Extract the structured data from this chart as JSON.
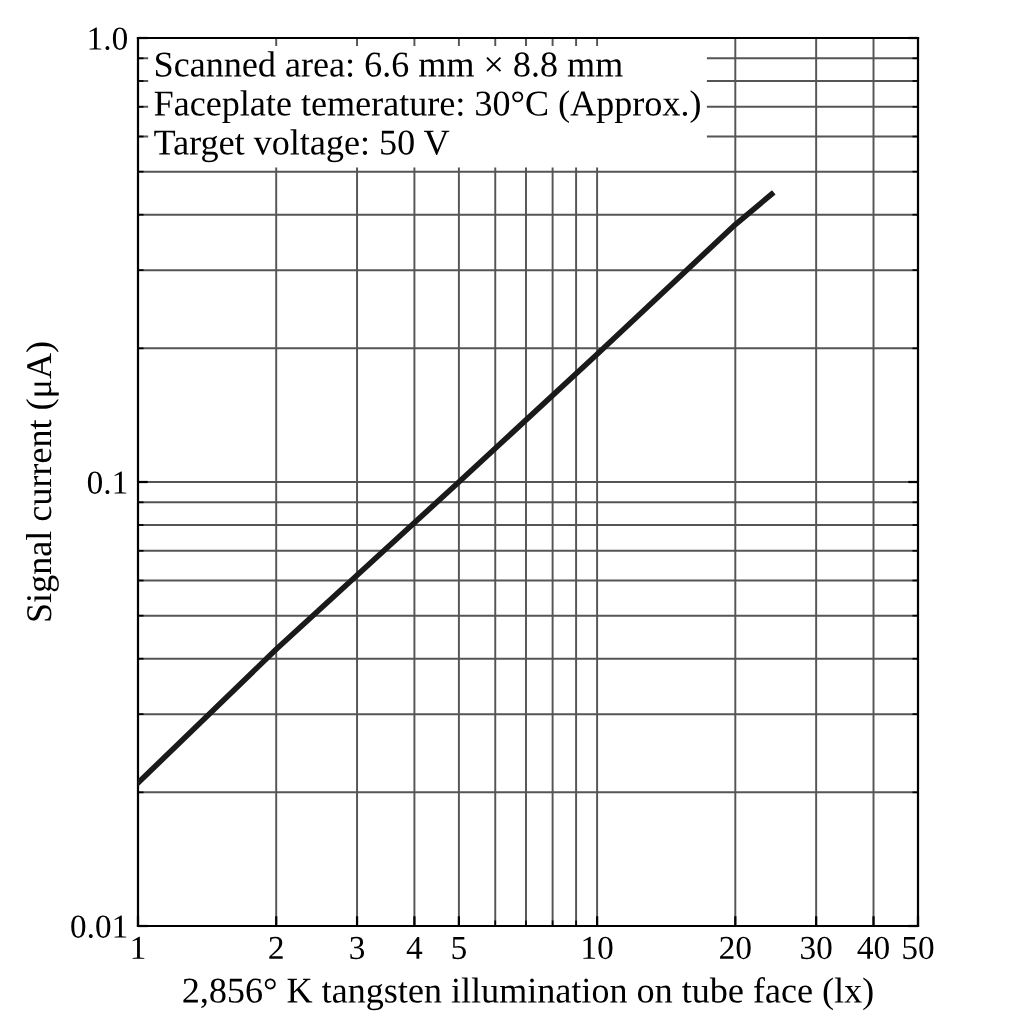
{
  "chart_data": {
    "type": "line",
    "xlabel": "2,856° K tangsten illumination on tube face (lx)",
    "ylabel": "Signal current (μA)",
    "annotations": [
      "Scanned area: 6.6 mm × 8.8 mm",
      "Faceplate temerature: 30°C (Approx.)",
      "Target voltage: 50 V"
    ],
    "log": "xy",
    "grid": true,
    "marker": "none",
    "line_style": "solid",
    "xlim": [
      1,
      50
    ],
    "xticks": [
      1,
      2,
      3,
      4,
      5,
      10,
      20,
      30,
      40,
      50
    ],
    "ylim": [
      0.01,
      1
    ],
    "yticks": [
      {
        "value": 0.01,
        "label": "0.01"
      },
      {
        "value": 0.1,
        "label": "0.1"
      },
      {
        "value": 1,
        "label": "1.0"
      }
    ],
    "series": [
      {
        "color": "#1a1a1a",
        "x": [
          1,
          2,
          5,
          10,
          20,
          24
        ],
        "values": [
          0.021,
          0.042,
          0.1,
          0.194,
          0.38,
          0.445
        ]
      }
    ]
  }
}
